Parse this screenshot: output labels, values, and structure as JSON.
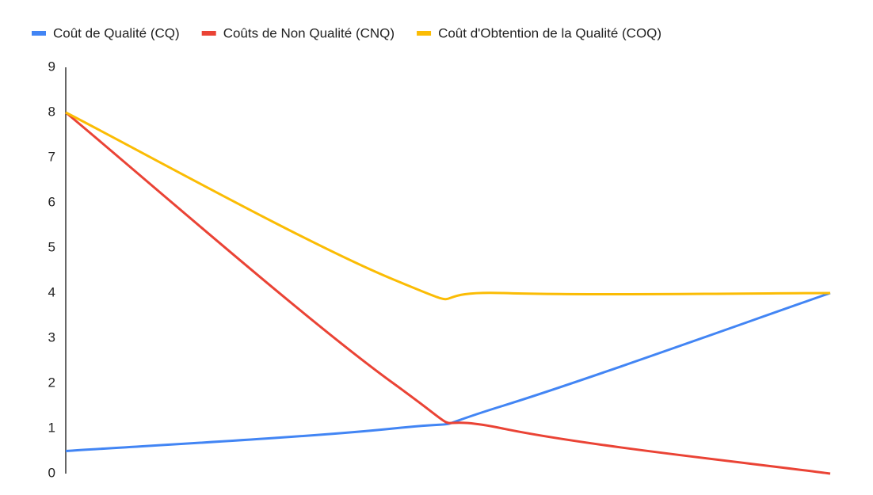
{
  "chart_data": {
    "type": "line",
    "x": [
      0,
      3,
      4,
      7
    ],
    "xlim": [
      0,
      7
    ],
    "ylim": [
      0,
      9
    ],
    "yticks": [
      0,
      1,
      2,
      3,
      4,
      5,
      6,
      7,
      8,
      9
    ],
    "grid": false,
    "legend": "top",
    "series": [
      {
        "name": "Coût de Qualité (CQ)",
        "color": "#4285f4",
        "values": [
          0.5,
          1,
          1.5,
          4
        ]
      },
      {
        "name": "Coûts de Non Qualité (CNQ)",
        "color": "#ea4335",
        "values": [
          8,
          2,
          1,
          0
        ]
      },
      {
        "name": "Coût d'Obtention de la Qualité (COQ)",
        "color": "#fbbc04",
        "values": [
          8,
          4.3,
          4,
          4
        ]
      }
    ]
  }
}
